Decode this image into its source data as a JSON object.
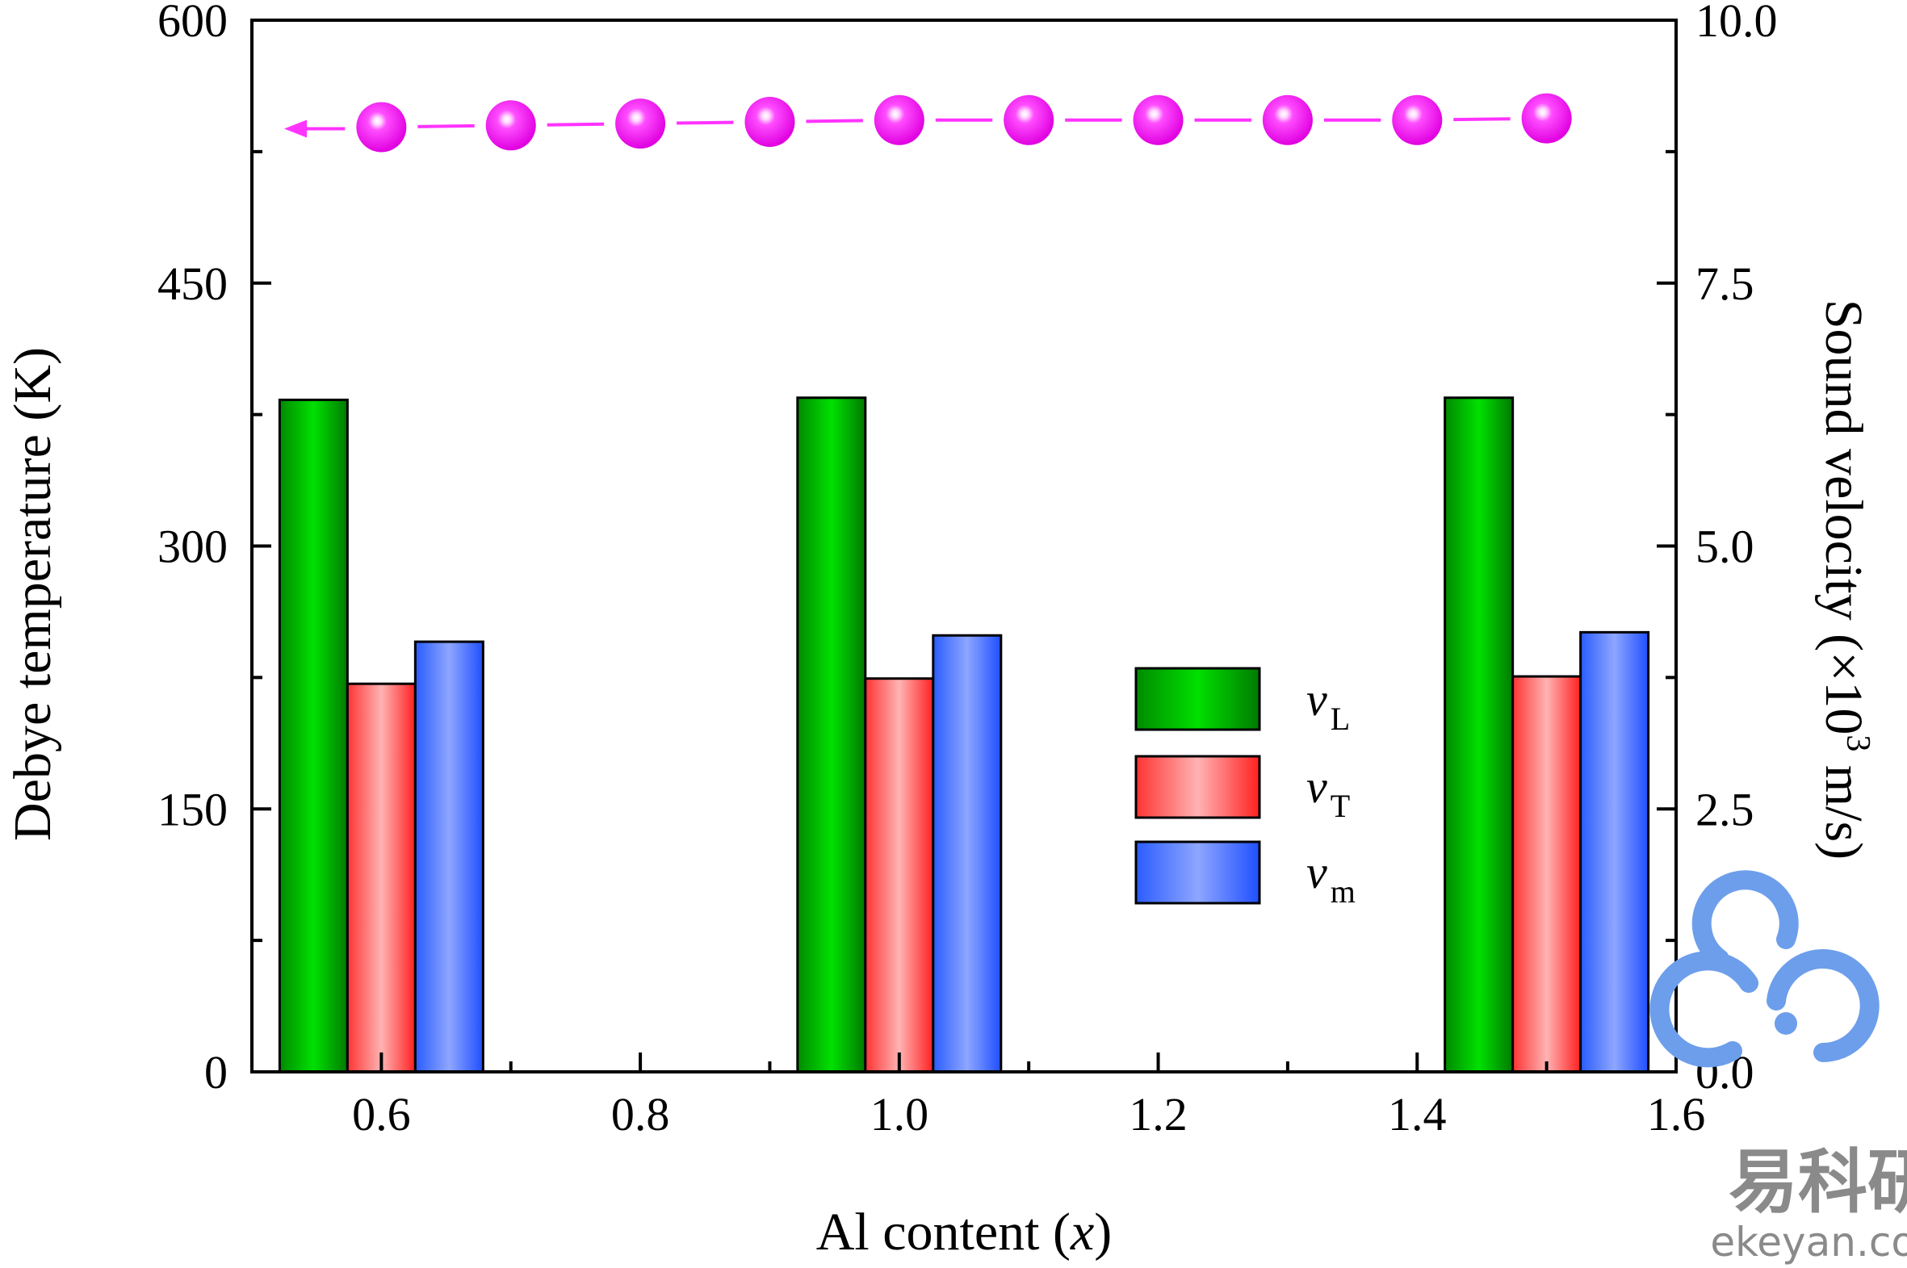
{
  "chart_data": {
    "type": "bar",
    "xlabel": "Al content (x)",
    "xlabel_parts": [
      "Al content (",
      "x",
      ")"
    ],
    "ylabel_left": "Debye temperature (K)",
    "ylabel_right": "Sound velocity (×10",
    "ylabel_right_sup": "3",
    "ylabel_right_tail": " m/s)",
    "xlim": [
      0.5,
      1.6
    ],
    "x_ticks": [
      0.6,
      0.8,
      1.0,
      1.2,
      1.4,
      1.6
    ],
    "x_tick_labels": [
      "0.6",
      "0.8",
      "1.0",
      "1.2",
      "1.4",
      "1.6"
    ],
    "ylim_left": [
      0,
      600
    ],
    "y_left_ticks": [
      0,
      150,
      300,
      450,
      600
    ],
    "y_left_tick_labels": [
      "0",
      "150",
      "300",
      "450",
      "600"
    ],
    "ylim_right": [
      0,
      10
    ],
    "y_right_ticks": [
      0,
      2.5,
      5,
      7.5,
      10
    ],
    "y_right_tick_labels": [
      "0.0",
      "2.5",
      "5.0",
      "7.5",
      "10.0"
    ],
    "bar_groups": [
      {
        "x": 0.6,
        "values": [
          6.39,
          3.69,
          4.09
        ]
      },
      {
        "x": 1.0,
        "values": [
          6.41,
          3.74,
          4.15
        ]
      },
      {
        "x": 1.5,
        "values": [
          6.41,
          3.76,
          4.18
        ]
      }
    ],
    "series": [
      {
        "name": "v",
        "subscript": "L",
        "color": "#00cc00"
      },
      {
        "name": "v",
        "subscript": "T",
        "color": "#ff6666"
      },
      {
        "name": "v",
        "subscript": "m",
        "color": "#6680ff"
      }
    ],
    "line_series": {
      "axis": "left",
      "color": "#ff33ff",
      "x": [
        0.6,
        0.7,
        0.8,
        0.9,
        1.0,
        1.1,
        1.2,
        1.3,
        1.4,
        1.5
      ],
      "y": [
        539,
        540,
        541,
        542,
        543,
        543,
        543,
        543,
        543,
        544
      ],
      "arrow": "left"
    },
    "legend_position": "center-right",
    "grid": false
  },
  "watermark": {
    "cn_text": "易科研",
    "url_text": "ekeyan.com",
    "logo_color": "#6d9eeb"
  }
}
